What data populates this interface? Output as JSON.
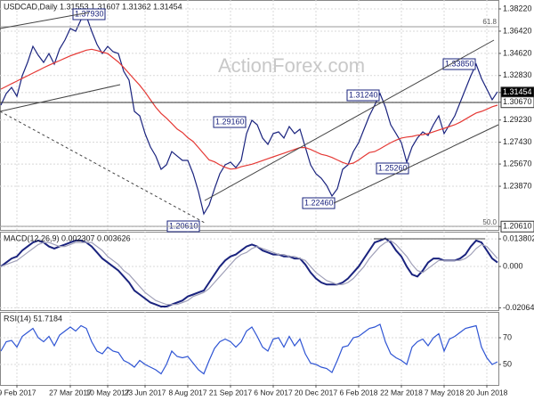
{
  "chart_data": [
    {
      "type": "line",
      "title": "USDCAD,Daily  1.31553 1.31607 1.31362 1.31454",
      "watermark": "ActionForex.com",
      "categories": [
        null,
        null,
        null,
        "9 Feb 2017",
        null,
        null,
        null,
        null,
        null,
        null,
        null,
        null,
        null,
        "27 Mar 2017",
        null,
        null,
        null,
        null,
        null,
        null,
        "10 May 2017",
        null,
        null,
        null,
        null,
        null,
        null,
        "23 Jun 2017",
        null,
        null,
        null,
        null,
        null,
        null,
        null,
        "8 Aug 2017",
        null,
        null,
        null,
        null,
        null,
        null,
        null,
        "21 Sep 2017",
        null,
        null,
        null,
        null,
        null,
        null,
        null,
        "6 Nov 2017",
        null,
        null,
        null,
        null,
        null,
        null,
        null,
        "20 Dec 2017",
        null,
        null,
        null,
        null,
        null,
        null,
        null,
        "6 Feb 2018",
        null,
        null,
        null,
        null,
        null,
        null,
        null,
        "22 Mar 2018",
        null,
        null,
        null,
        null,
        null,
        null,
        null,
        "7 May 2018",
        null,
        null,
        null,
        null,
        null,
        null,
        null,
        "20 Jun 2018",
        null,
        null
      ],
      "series": [
        {
          "name": "USDCAD",
          "color": "#1a237e",
          "values": [
            1.3043,
            1.3137,
            1.3187,
            1.3115,
            1.3281,
            1.3389,
            1.3519,
            1.3447,
            1.3389,
            1.3461,
            1.3375,
            1.3498,
            1.357,
            1.3663,
            1.3642,
            1.3735,
            1.3764,
            1.3642,
            1.3534,
            1.3461,
            1.3519,
            1.3476,
            1.3461,
            1.3317,
            1.3245,
            1.2993,
            1.2957,
            1.2813,
            1.2705,
            1.2632,
            1.2524,
            1.256,
            1.2668,
            1.2632,
            1.2596,
            1.2596,
            1.2488,
            1.2344,
            1.2164,
            1.2236,
            1.2366,
            1.2488,
            1.256,
            1.2582,
            1.2538,
            1.2596,
            1.2813,
            1.2921,
            1.2885,
            1.2777,
            1.2726,
            1.2813,
            1.2827,
            1.2777,
            1.287,
            1.2813,
            1.2849,
            1.2705,
            1.256,
            1.2488,
            1.2452,
            1.2394,
            1.2308,
            1.2366,
            1.2524,
            1.256,
            1.2668,
            1.274,
            1.2849,
            1.2957,
            1.3043,
            1.3137,
            1.3029,
            1.2885,
            1.2813,
            1.274,
            1.2582,
            1.2705,
            1.2777,
            1.2827,
            1.2798,
            1.2885,
            1.2957,
            1.2813,
            1.2885,
            1.2957,
            1.3065,
            1.3173,
            1.3281,
            1.3375,
            1.3259,
            1.3173,
            1.3087,
            1.3152
          ]
        },
        {
          "name": "MA",
          "color": "#e53935",
          "values": [
            1.3173,
            1.3195,
            1.3217,
            1.3238,
            1.326,
            1.3281,
            1.3303,
            1.3324,
            1.3346,
            1.3366,
            1.3385,
            1.3404,
            1.3423,
            1.3442,
            1.3458,
            1.3473,
            1.3488,
            1.3495,
            1.3485,
            1.3472,
            1.3461,
            1.3426,
            1.3392,
            1.3348,
            1.33,
            1.3252,
            1.3204,
            1.3149,
            1.3087,
            1.3026,
            1.2976,
            1.2938,
            1.2895,
            1.285,
            1.2822,
            1.278,
            1.275,
            1.27,
            1.265,
            1.26,
            1.2585,
            1.256,
            1.254,
            1.2526,
            1.253,
            1.2545,
            1.2555,
            1.2565,
            1.258,
            1.2595,
            1.261,
            1.2625,
            1.264,
            1.2655,
            1.267,
            1.2685,
            1.27,
            1.27,
            1.2685,
            1.2665,
            1.2645,
            1.2635,
            1.262,
            1.26,
            1.258,
            1.2565,
            1.2575,
            1.26,
            1.263,
            1.266,
            1.2668,
            1.269,
            1.2715,
            1.274,
            1.276,
            1.2777,
            1.2785,
            1.279,
            1.28,
            1.2805,
            1.2813,
            1.2828,
            1.2842,
            1.2856,
            1.287,
            1.2885,
            1.2905,
            1.293,
            1.2955,
            1.298,
            1.2993,
            1.301,
            1.303,
            1.3043
          ]
        }
      ],
      "annotations": [
        "1.37930",
        "1.29160",
        "1.31240",
        "1.33850",
        "1.25260",
        "1.22460",
        "1.20610",
        "61.8",
        "50.0"
      ],
      "ylim": [
        1.2034,
        1.3894
      ],
      "yticks": [
        {
          "value": 1.3822,
          "label": "1.38220"
        },
        {
          "value": 1.3642,
          "label": "1.36420"
        },
        {
          "value": 1.3462,
          "label": "1.34620"
        },
        {
          "value": 1.3283,
          "label": "1.32830"
        },
        {
          "value": 1.31454,
          "label": "1.31454"
        },
        {
          "value": 1.3067,
          "label": "1.30670"
        },
        {
          "value": 1.2923,
          "label": "1.29230"
        },
        {
          "value": 1.2743,
          "label": "1.27430"
        },
        {
          "value": 1.2567,
          "label": "1.25670"
        },
        {
          "value": 1.2387,
          "label": "1.23870"
        },
        {
          "value": 1.2061,
          "label": "1.20610"
        }
      ],
      "grid": true
    },
    {
      "type": "line",
      "title": "MACD(12,26,9) 0.002307 0.003626",
      "series": [
        {
          "name": "MACD",
          "color": "#1a237e",
          "values": [
            0,
            0.002,
            0.004,
            0.005,
            0.008,
            0.01,
            0.012,
            0.013,
            0.012,
            0.01,
            0.009,
            0.01,
            0.011,
            0.012,
            0.013,
            0.013,
            0.012,
            0.01,
            0.007,
            0.004,
            0.002,
            0,
            -0.002,
            -0.005,
            -0.008,
            -0.012,
            -0.014,
            -0.016,
            -0.018,
            -0.019,
            -0.02,
            -0.02,
            -0.019,
            -0.018,
            -0.017,
            -0.015,
            -0.014,
            -0.013,
            -0.012,
            -0.008,
            -0.004,
            0,
            0.003,
            0.005,
            0.006,
            0.008,
            0.01,
            0.011,
            0.01,
            0.008,
            0.007,
            0.006,
            0.006,
            0.005,
            0.005,
            0.004,
            0.004,
            0.001,
            -0.003,
            -0.006,
            -0.008,
            -0.009,
            -0.009,
            -0.009,
            -0.008,
            -0.006,
            -0.003,
            0,
            0.004,
            0.008,
            0.012,
            0.013,
            0.014,
            0.012,
            0.008,
            0.005,
            0,
            -0.004,
            -0.005,
            -0.002,
            0.002,
            0.004,
            0.004,
            0.003,
            0.003,
            0.003,
            0.004,
            0.006,
            0.01,
            0.013,
            0.012,
            0.008,
            0.004,
            0.002
          ]
        },
        {
          "name": "Signal",
          "color": "#a0a0b8",
          "values": [
            0,
            0.001,
            0.002,
            0.003,
            0.005,
            0.007,
            0.009,
            0.011,
            0.012,
            0.012,
            0.011,
            0.01,
            0.01,
            0.011,
            0.012,
            0.012,
            0.012,
            0.012,
            0.01,
            0.008,
            0.005,
            0.003,
            0.001,
            -0.002,
            -0.004,
            -0.007,
            -0.01,
            -0.013,
            -0.015,
            -0.017,
            -0.018,
            -0.019,
            -0.019,
            -0.019,
            -0.018,
            -0.017,
            -0.015,
            -0.014,
            -0.013,
            -0.011,
            -0.008,
            -0.005,
            -0.002,
            0.001,
            0.004,
            0.006,
            0.007,
            0.009,
            0.01,
            0.009,
            0.008,
            0.007,
            0.006,
            0.006,
            0.005,
            0.005,
            0.004,
            0.003,
            0,
            -0.003,
            -0.005,
            -0.007,
            -0.008,
            -0.009,
            -0.009,
            -0.008,
            -0.006,
            -0.003,
            0,
            0.004,
            0.007,
            0.01,
            0.012,
            0.013,
            0.011,
            0.008,
            0.005,
            0.001,
            -0.002,
            -0.003,
            -0.001,
            0.001,
            0.003,
            0.003,
            0.003,
            0.003,
            0.003,
            0.004,
            0.006,
            0.009,
            0.011,
            0.01,
            0.007,
            0.004
          ]
        }
      ],
      "ylim": [
        -0.0218,
        0.0174
      ],
      "yticks": [
        0.013802,
        {
          "value": 0,
          "label": "0.000"
        },
        -0.020646
      ]
    },
    {
      "type": "line",
      "title": "RSI(14) 51.7184",
      "series": [
        {
          "name": "RSI",
          "color": "#2f55d4",
          "values": [
            60,
            67,
            68,
            63,
            71,
            74,
            77,
            70,
            67,
            71,
            64,
            72,
            75,
            78,
            75,
            79,
            77,
            67,
            60,
            58,
            63,
            60,
            59,
            53,
            51,
            48,
            53,
            50,
            48,
            46,
            43,
            50,
            60,
            56,
            55,
            56,
            51,
            46,
            43,
            53,
            62,
            67,
            69,
            67,
            63,
            67,
            75,
            78,
            71,
            63,
            60,
            69,
            70,
            63,
            71,
            64,
            69,
            58,
            51,
            50,
            48,
            47,
            44,
            53,
            63,
            64,
            70,
            71,
            74,
            77,
            78,
            80,
            67,
            58,
            55,
            53,
            50,
            63,
            67,
            69,
            64,
            70,
            73,
            60,
            69,
            71,
            74,
            77,
            78,
            79,
            63,
            55,
            50,
            52
          ]
        }
      ],
      "ylim": [
        34.7,
        89.3
      ],
      "yticks": [
        70,
        50
      ]
    }
  ]
}
